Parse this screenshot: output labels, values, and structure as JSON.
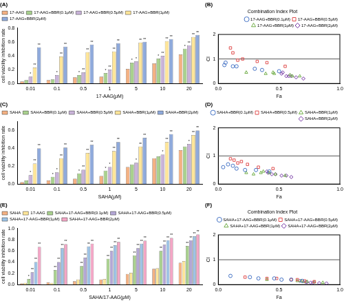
{
  "chart_data": [
    {
      "type": "bar",
      "panel": "(A)",
      "x_label": "17-AAG(μM)",
      "y_label": "cell viability inhibition rate",
      "categories": [
        "0.01",
        "0.1",
        "0.5",
        "1",
        "5",
        "10",
        "20"
      ],
      "ylim": [
        0,
        0.8
      ],
      "yticks": [
        {
          "value": 0,
          "label": "0.0"
        },
        0.2,
        0.4,
        0.6,
        0.8
      ],
      "grid": false,
      "legend": "top-left",
      "series": [
        {
          "name": "17-AAG",
          "color": "#F4B183",
          "values": [
            0.03,
            0.05,
            0.09,
            0.1,
            0.21,
            0.29,
            0.42
          ],
          "annotations": [
            null,
            null,
            null,
            null,
            null,
            null,
            null
          ]
        },
        {
          "name": "17-AAG+BBR(0.1μM)",
          "color": "#A9D18E",
          "values": [
            0.05,
            0.06,
            0.12,
            0.15,
            0.3,
            0.36,
            0.5
          ],
          "annotations": [
            null,
            null,
            "*",
            "*",
            "*",
            "*",
            "*"
          ]
        },
        {
          "name": "17-AAG+BBR(0.5μM)",
          "color": "#C9B3D9",
          "values": [
            0.1,
            0.12,
            0.16,
            0.2,
            0.32,
            0.4,
            0.55
          ],
          "annotations": [
            "*",
            "*",
            "**",
            "**",
            "*",
            "**",
            "**"
          ]
        },
        {
          "name": "17-AAG+BBR(1μM)",
          "color": "#FFE699",
          "values": [
            0.23,
            0.39,
            0.45,
            0.46,
            0.59,
            0.61,
            0.67
          ],
          "annotations": [
            "**",
            "**",
            "**",
            "**",
            "**",
            "**",
            "**"
          ]
        },
        {
          "name": "17-AAG+BBR(2μM)",
          "color": "#8FAADC",
          "values": [
            0.52,
            0.53,
            0.56,
            0.58,
            0.6,
            0.64,
            0.7
          ],
          "annotations": [
            "**",
            "**",
            "**",
            "**",
            "**",
            "**",
            "**"
          ]
        }
      ]
    },
    {
      "type": "scatter",
      "panel": "(B)",
      "title": "Combination Index Plot",
      "x_label": "Fa",
      "y_label": "CI",
      "xlim": [
        0,
        1
      ],
      "xticks": [
        {
          "value": 0,
          "label": "0.0"
        },
        0.5,
        {
          "value": 1,
          "label": "1.0"
        }
      ],
      "ylim": [
        0,
        2
      ],
      "yticks": [
        0,
        1,
        2
      ],
      "hline": 1,
      "grid": false,
      "legend": "top-right",
      "series": [
        {
          "name": "17-AAG+BBR(0.1μM)",
          "color": "#4472C4",
          "marker": "circle",
          "x": [
            0.05,
            0.06,
            0.12,
            0.15,
            0.3,
            0.36,
            0.5
          ],
          "values": [
            0.75,
            0.85,
            0.7,
            0.7,
            0.6,
            0.55,
            0.5
          ]
        },
        {
          "name": "17-AAG+BBR(0.5μM)",
          "color": "#E05050",
          "marker": "square",
          "x": [
            0.1,
            0.12,
            0.16,
            0.2,
            0.32,
            0.4,
            0.55
          ],
          "values": [
            1.45,
            1.25,
            0.95,
            1.0,
            0.9,
            0.85,
            0.7
          ]
        },
        {
          "name": "17-AAG+BBR(1μM)",
          "color": "#70AD47",
          "marker": "triangle",
          "x": [
            0.23,
            0.39,
            0.45,
            0.46,
            0.59,
            0.61,
            0.67
          ],
          "values": [
            0.45,
            0.4,
            0.45,
            0.4,
            0.35,
            0.3,
            0.3
          ]
        },
        {
          "name": "17-AAG+BBR(2μM)",
          "color": "#7030A0",
          "marker": "diamond",
          "x": [
            0.52,
            0.53,
            0.56,
            0.58,
            0.6,
            0.64,
            0.7
          ],
          "values": [
            0.4,
            0.45,
            0.3,
            0.3,
            0.3,
            0.25,
            0.2
          ]
        }
      ]
    },
    {
      "type": "bar",
      "panel": "(C)",
      "x_label": "SAHA(μM)",
      "y_label": "cell viability inhibition rate",
      "categories": [
        "0.01",
        "0.1",
        "0.5",
        "1",
        "5",
        "10",
        "20"
      ],
      "ylim": [
        0,
        0.7
      ],
      "yticks": [
        {
          "value": 0,
          "label": "0.0"
        },
        0.2,
        0.4,
        0.6
      ],
      "grid": false,
      "legend": "top-left",
      "series": [
        {
          "name": "SAHA",
          "color": "#F4B183",
          "values": [
            0.02,
            0.04,
            0.06,
            0.09,
            0.19,
            0.29,
            0.38
          ],
          "annotations": [
            null,
            null,
            null,
            null,
            null,
            null,
            null
          ]
        },
        {
          "name": "SAHA+BBR(0.1μM)",
          "color": "#A9D18E",
          "values": [
            0.04,
            0.08,
            0.12,
            0.15,
            0.22,
            0.31,
            0.42
          ],
          "annotations": [
            null,
            "*",
            "*",
            "*",
            null,
            null,
            null
          ]
        },
        {
          "name": "SAHA+BBR(0.5μM)",
          "color": "#C9B3D9",
          "values": [
            0.1,
            0.13,
            0.16,
            0.19,
            0.24,
            0.33,
            0.45
          ],
          "annotations": [
            "*",
            "*",
            "**",
            "*",
            "*",
            "*",
            "*"
          ]
        },
        {
          "name": "SAHA+BBR(1μM)",
          "color": "#FFE699",
          "values": [
            0.23,
            0.29,
            0.35,
            0.37,
            0.42,
            0.47,
            0.55
          ],
          "annotations": [
            "**",
            "**",
            "**",
            "**",
            "**",
            "**",
            "**"
          ]
        },
        {
          "name": "SAHA+BBR(2μM)",
          "color": "#8FAADC",
          "values": [
            0.4,
            0.41,
            0.44,
            0.47,
            0.52,
            0.56,
            0.6
          ],
          "annotations": [
            "**",
            "**",
            "**",
            "**",
            "**",
            "**",
            "**"
          ]
        }
      ]
    },
    {
      "type": "scatter",
      "panel": "(D)",
      "x_label": "Fa",
      "y_label": "CI",
      "xlim": [
        0,
        1
      ],
      "xticks": [
        {
          "value": 0,
          "label": "0.0"
        },
        0.5,
        {
          "value": 1,
          "label": "1.0"
        }
      ],
      "ylim": [
        0,
        2
      ],
      "yticks": [
        0,
        1,
        2
      ],
      "hline": 1,
      "grid": false,
      "legend": "top-right",
      "series": [
        {
          "name": "SAHA+BBR(0.1μM)",
          "color": "#4472C4",
          "marker": "circle",
          "x": [
            0.04,
            0.08,
            0.12,
            0.15,
            0.22,
            0.31,
            0.42
          ],
          "values": [
            0.6,
            0.7,
            0.65,
            0.55,
            0.5,
            0.5,
            0.45
          ]
        },
        {
          "name": "SAHA+BBR(0.5μM)",
          "color": "#E05050",
          "marker": "square",
          "x": [
            0.1,
            0.13,
            0.16,
            0.19,
            0.24,
            0.33,
            0.45
          ],
          "values": [
            0.9,
            0.85,
            0.75,
            0.8,
            0.7,
            0.6,
            0.55
          ]
        },
        {
          "name": "SAHA+BBR(1μM)",
          "color": "#70AD47",
          "marker": "triangle",
          "x": [
            0.23,
            0.29,
            0.35,
            0.37,
            0.42,
            0.47,
            0.55
          ],
          "values": [
            0.4,
            0.35,
            0.4,
            0.45,
            0.4,
            0.35,
            0.3
          ]
        },
        {
          "name": "SAHA+BBR(2μM)",
          "color": "#7030A0",
          "marker": "diamond",
          "x": [
            0.4,
            0.41,
            0.44,
            0.47,
            0.52,
            0.56,
            0.6
          ],
          "values": [
            0.45,
            0.4,
            0.35,
            0.35,
            0.3,
            0.3,
            0.25
          ]
        }
      ]
    },
    {
      "type": "bar",
      "panel": "(E)",
      "x_label": "SAHA/17-AAG(μM)",
      "y_label": "cell viability inhibition rate",
      "categories": [
        "0.01",
        "0.1",
        "0.5",
        "1",
        "5",
        "10",
        "20"
      ],
      "ylim": [
        0,
        1
      ],
      "yticks": [
        {
          "value": 0,
          "label": "0.0"
        },
        0.2,
        0.4,
        0.6,
        0.8,
        {
          "value": 1,
          "label": "1.0"
        }
      ],
      "grid": false,
      "legend": "top-left",
      "series": [
        {
          "name": "SAHA",
          "color": "#F4B183",
          "values": [
            0.02,
            0.04,
            0.06,
            0.09,
            0.19,
            0.28,
            0.39
          ],
          "annotations": [
            null,
            null,
            null,
            null,
            null,
            null,
            null
          ]
        },
        {
          "name": "17-AAG",
          "color": "#FFE699",
          "values": [
            0.03,
            0.03,
            0.09,
            0.1,
            0.21,
            0.29,
            0.42
          ],
          "annotations": [
            null,
            null,
            null,
            null,
            null,
            null,
            null
          ]
        },
        {
          "name": "SAHA+17-AAG+BBR(0.1μM)",
          "color": "#A9D18E",
          "values": [
            0.1,
            0.26,
            0.33,
            0.46,
            0.52,
            0.6,
            0.69
          ],
          "annotations": [
            "*",
            "**",
            "**",
            "**",
            "**",
            "**",
            "**"
          ]
        },
        {
          "name": "SAHA+17-AAG+BBR(0.5μM)",
          "color": "#B4A7D6",
          "values": [
            0.22,
            0.4,
            0.48,
            0.6,
            0.65,
            0.71,
            0.79
          ],
          "annotations": [
            "**",
            "**",
            "**",
            "**",
            "**",
            "**",
            "**"
          ]
        },
        {
          "name": "SAHA+17-AAG+BBR(1μM)",
          "color": "#9DC3E6",
          "values": [
            0.4,
            0.65,
            0.68,
            0.7,
            0.73,
            0.79,
            0.86
          ],
          "annotations": [
            "**",
            "**",
            "**",
            "**",
            "**",
            "**",
            "**"
          ]
        },
        {
          "name": "SAHA+17-AAG+BBR(2μM)",
          "color": "#F4A6C6",
          "values": [
            0.67,
            0.72,
            0.73,
            0.76,
            0.78,
            0.83,
            0.89
          ],
          "annotations": [
            "**",
            "**",
            "**",
            "**",
            "**",
            "**",
            "**"
          ]
        }
      ]
    },
    {
      "type": "scatter",
      "panel": "(F)",
      "title": "Combination Index Plot",
      "x_label": "Fa",
      "y_label": "CI",
      "xlim": [
        0,
        1
      ],
      "xticks": [
        {
          "value": 0,
          "label": "0.0"
        },
        0.5,
        {
          "value": 1,
          "label": "1.0"
        }
      ],
      "ylim": [
        0,
        2
      ],
      "yticks": [
        0,
        1,
        2
      ],
      "hline": 1,
      "grid": false,
      "legend": "top-right",
      "series": [
        {
          "name": "SAHA+17-AAG+BBR(0.1μM)",
          "color": "#4472C4",
          "marker": "circle",
          "x": [
            0.1,
            0.26,
            0.33,
            0.46,
            0.52,
            0.6,
            0.69
          ],
          "values": [
            0.35,
            0.3,
            0.25,
            0.25,
            0.2,
            0.2,
            0.15
          ]
        },
        {
          "name": "SAHA+17-AAG+BBR(0.5μM)",
          "color": "#E05050",
          "marker": "square",
          "x": [
            0.22,
            0.4,
            0.48,
            0.6,
            0.65,
            0.71,
            0.79
          ],
          "values": [
            0.3,
            0.25,
            0.25,
            0.2,
            0.2,
            0.15,
            0.12
          ]
        },
        {
          "name": "SAHA+17-AAG+BBR(1μM)",
          "color": "#70AD47",
          "marker": "triangle",
          "x": [
            0.4,
            0.65,
            0.68,
            0.7,
            0.73,
            0.79,
            0.86
          ],
          "values": [
            0.2,
            0.15,
            0.15,
            0.12,
            0.12,
            0.1,
            0.08
          ]
        },
        {
          "name": "SAHA+17-AAG+BBR(2μM)",
          "color": "#7030A0",
          "marker": "diamond",
          "x": [
            0.67,
            0.72,
            0.73,
            0.76,
            0.78,
            0.83,
            0.89
          ],
          "values": [
            0.15,
            0.1,
            0.1,
            0.08,
            0.08,
            0.06,
            0.05
          ]
        }
      ]
    }
  ]
}
